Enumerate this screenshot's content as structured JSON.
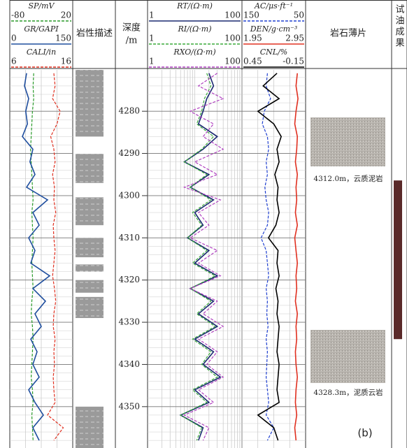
{
  "chart_data": {
    "type": "well-log",
    "depth_label": [
      "深度",
      "/m"
    ],
    "lithology_label": "岩性描述",
    "thin_section_label": "岩石薄片",
    "oil_test_label": [
      "试",
      "油",
      "成",
      "果"
    ],
    "panel_label": "(b)",
    "ylim": [
      4270.2,
      4359.8
    ],
    "yticks": [
      4280,
      4290,
      4300,
      4310,
      4320,
      4330,
      4340,
      4350
    ],
    "depth": [
      4271,
      4274,
      4277,
      4280,
      4283,
      4286,
      4289,
      4292,
      4295,
      4298,
      4301,
      4304,
      4307,
      4310,
      4313,
      4316,
      4319,
      4322,
      4325,
      4328,
      4331,
      4334,
      4337,
      4340,
      4343,
      4346,
      4349,
      4352,
      4355,
      4358
    ],
    "tracks": [
      {
        "scale": "linear",
        "curves": [
          {
            "name": "SP/mV",
            "color": "#2a9a2a",
            "dash": true,
            "xlim": [
              -80,
              20
            ],
            "values": [
              -42,
              -43,
              -42,
              -44,
              -45,
              -46,
              -47,
              -46,
              -45,
              -44,
              -43,
              -45,
              -44,
              -43,
              -44,
              -45,
              -44,
              -43,
              -45,
              -46,
              -44,
              -43,
              -44,
              -45,
              -46,
              -44,
              -43,
              -45,
              -44,
              -43
            ]
          },
          {
            "name": "GR/GAPI",
            "color": "#1f4e9e",
            "dash": false,
            "xlim": [
              0,
              150
            ],
            "values": [
              40,
              35,
              45,
              38,
              42,
              30,
              55,
              48,
              60,
              40,
              90,
              55,
              70,
              45,
              60,
              50,
              95,
              55,
              85,
              60,
              75,
              50,
              65,
              55,
              70,
              45,
              60,
              80,
              55,
              70
            ]
          },
          {
            "name": "CALI/in",
            "color": "#e03020",
            "dash": true,
            "xlim": [
              6,
              16
            ],
            "values": [
              13,
              13.2,
              12.8,
              14,
              13.5,
              12.5,
              13,
              13.2,
              12.8,
              13.1,
              13,
              13.3,
              12.9,
              13,
              13.2,
              13,
              12.8,
              13.1,
              13.3,
              13,
              12.9,
              13.2,
              13,
              13.1,
              12.9,
              13,
              13.2,
              12,
              14.5,
              13
            ]
          }
        ]
      },
      {
        "scale": "log",
        "curves": [
          {
            "name": "RT/(Ω·m)",
            "color": "#1a2a70",
            "dash": false,
            "xlim": [
              1,
              100
            ],
            "values": [
              20,
              25,
              18,
              15,
              12,
              30,
              15,
              6,
              20,
              8,
              25,
              10,
              15,
              7,
              20,
              10,
              30,
              8,
              25,
              12,
              30,
              10,
              25,
              15,
              35,
              10,
              20,
              5,
              15,
              12
            ]
          },
          {
            "name": "RI/(Ω·m)",
            "color": "#3aaa3a",
            "dash": true,
            "xlim": [
              1,
              100
            ],
            "values": [
              18,
              22,
              16,
              14,
              11,
              25,
              14,
              6,
              18,
              8,
              22,
              9,
              14,
              7,
              18,
              9,
              27,
              8,
              22,
              11,
              27,
              9,
              22,
              14,
              30,
              9,
              18,
              5,
              14,
              11
            ]
          },
          {
            "name": "RXO/(Ω·m)",
            "color": "#b040c0",
            "dash": true,
            "xlim": [
              1,
              100
            ],
            "values": [
              30,
              12,
              40,
              8,
              25,
              15,
              40,
              10,
              30,
              6,
              35,
              12,
              20,
              8,
              30,
              12,
              35,
              8,
              30,
              15,
              40,
              12,
              30,
              18,
              40,
              12,
              25,
              6,
              20,
              15
            ]
          }
        ]
      },
      {
        "scale": "linear",
        "curves": [
          {
            "name": "AC/μs·ft⁻¹",
            "color": "#2040d0",
            "dash": true,
            "xlim": [
              150,
              50
            ],
            "values": [
              110,
              112,
              105,
              115,
              118,
              110,
              108,
              112,
              110,
              114,
              112,
              108,
              110,
              120,
              112,
              110,
              108,
              112,
              110,
              111,
              109,
              112,
              110,
              111,
              112,
              110,
              108,
              112,
              100,
              110
            ]
          },
          {
            "name": "DEN/g·cm⁻³",
            "color": "#e03020",
            "dash": false,
            "xlim": [
              1.95,
              2.95
            ],
            "values": [
              2.82,
              2.8,
              2.83,
              2.8,
              2.78,
              2.82,
              2.81,
              2.79,
              2.82,
              2.8,
              2.81,
              2.79,
              2.82,
              2.78,
              2.8,
              2.82,
              2.8,
              2.81,
              2.79,
              2.82,
              2.8,
              2.81,
              2.79,
              2.8,
              2.82,
              2.8,
              2.79,
              2.81,
              2.78,
              2.8
            ]
          },
          {
            "name": "CNL/%",
            "color": "#000000",
            "dash": false,
            "xlim": [
              0.45,
              -0.15
            ],
            "values": [
              0.12,
              0.25,
              0.1,
              0.3,
              0.15,
              0.08,
              0.12,
              0.1,
              0.14,
              0.11,
              0.12,
              0.1,
              0.13,
              0.2,
              0.11,
              0.12,
              0.1,
              0.13,
              0.11,
              0.12,
              0.1,
              0.11,
              0.12,
              0.1,
              0.11,
              0.12,
              0.1,
              0.3,
              0.15,
              0.11
            ]
          }
        ]
      }
    ],
    "lithology_intervals": [
      [
        4270.2,
        4286
      ],
      [
        4290.1,
        4297
      ],
      [
        4300.4,
        4307
      ],
      [
        4310,
        4314.6
      ],
      [
        4316.3,
        4318
      ],
      [
        4320,
        4323
      ],
      [
        4324,
        4329
      ],
      [
        4350,
        4359.8
      ]
    ],
    "oil_test_interval": [
      4296.4,
      4334
    ],
    "thin_sections": [
      {
        "caption": "4312.0m，云质泥岩"
      },
      {
        "caption": "4328.3m，泥质云岩"
      }
    ]
  }
}
